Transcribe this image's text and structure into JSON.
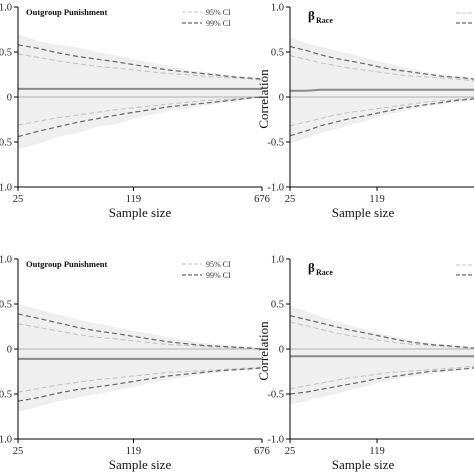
{
  "chart_data": [
    {
      "type": "area",
      "title": "Outgroup Punishment",
      "xlabel": "Sample size",
      "ylabel": "",
      "xticks": [
        "25",
        "119",
        "676"
      ],
      "yticks": [
        "1.0",
        "0.5",
        "0",
        "0.5",
        "1.0"
      ],
      "ylim": [
        -1,
        1
      ],
      "legend": [
        "95% CI",
        "99% CI"
      ],
      "legend_position": "top-right",
      "x": [
        25,
        33,
        43,
        56,
        73,
        95,
        119,
        150,
        190,
        240,
        305,
        385,
        480,
        580,
        676
      ],
      "series": [
        {
          "name": "",
          "values": [
            0.09,
            0.09,
            0.09,
            0.09,
            0.09,
            0.09,
            0.09,
            0.09,
            0.09,
            0.09,
            0.09,
            0.09,
            0.09,
            0.09,
            0.09
          ]
        },
        {
          "name": "95% CI",
          "upper": [
            0.48,
            0.44,
            0.4,
            0.37,
            0.34,
            0.32,
            0.3,
            0.28,
            0.26,
            0.25,
            0.23,
            0.22,
            0.21,
            0.2,
            0.19
          ],
          "lower": [
            -0.31,
            -0.27,
            -0.23,
            -0.2,
            -0.17,
            -0.14,
            -0.12,
            -0.1,
            -0.08,
            -0.06,
            -0.04,
            -0.03,
            -0.02,
            -0.01,
            0.0
          ]
        },
        {
          "name": "99% CI",
          "upper": [
            0.58,
            0.54,
            0.49,
            0.45,
            0.42,
            0.39,
            0.36,
            0.33,
            0.3,
            0.28,
            0.26,
            0.24,
            0.22,
            0.21,
            0.2
          ],
          "lower": [
            -0.44,
            -0.38,
            -0.33,
            -0.28,
            -0.24,
            -0.2,
            -0.17,
            -0.14,
            -0.11,
            -0.09,
            -0.07,
            -0.05,
            -0.03,
            -0.01,
            0.0
          ]
        },
        {
          "name": "band",
          "upper": [
            0.7,
            0.62,
            0.58,
            0.55,
            0.5,
            0.46,
            0.42,
            0.38,
            0.35,
            0.3,
            0.28,
            0.26,
            0.23,
            0.22,
            0.21
          ],
          "lower": [
            -0.58,
            -0.52,
            -0.44,
            -0.4,
            -0.33,
            -0.3,
            -0.24,
            -0.2,
            -0.16,
            -0.13,
            -0.1,
            -0.07,
            -0.05,
            -0.02,
            0.0
          ]
        }
      ]
    },
    {
      "type": "area",
      "title": "β",
      "title_sub": "Race",
      "xlabel": "Sample size",
      "ylabel": "Correlation",
      "xticks": [
        "25",
        "119"
      ],
      "yticks": [
        "1.0",
        "0.5",
        "0",
        "-0.5",
        "-1.0"
      ],
      "ylim": [
        -1,
        1
      ],
      "legend": [],
      "legend_position": "top-right",
      "x": [
        25,
        33,
        43,
        56,
        73,
        95,
        119,
        150,
        190,
        240,
        305,
        385,
        480,
        580,
        676
      ],
      "series": [
        {
          "name": "",
          "values": [
            0.07,
            0.07,
            0.08,
            0.08,
            0.08,
            0.08,
            0.08,
            0.08,
            0.08,
            0.08,
            0.08,
            0.08,
            0.08,
            0.08,
            0.08
          ]
        },
        {
          "name": "95% CI",
          "upper": [
            0.46,
            0.42,
            0.38,
            0.35,
            0.32,
            0.3,
            0.28,
            0.26,
            0.24,
            0.23,
            0.22,
            0.21,
            0.2,
            0.19,
            0.18
          ],
          "lower": [
            -0.32,
            -0.28,
            -0.24,
            -0.2,
            -0.17,
            -0.15,
            -0.13,
            -0.11,
            -0.09,
            -0.07,
            -0.05,
            -0.04,
            -0.03,
            -0.02,
            -0.01
          ]
        },
        {
          "name": "99% CI",
          "upper": [
            0.56,
            0.52,
            0.47,
            0.43,
            0.4,
            0.37,
            0.34,
            0.31,
            0.29,
            0.27,
            0.25,
            0.23,
            0.22,
            0.21,
            0.2
          ],
          "lower": [
            -0.43,
            -0.38,
            -0.32,
            -0.28,
            -0.24,
            -0.21,
            -0.18,
            -0.15,
            -0.12,
            -0.1,
            -0.08,
            -0.06,
            -0.04,
            -0.03,
            -0.02
          ]
        },
        {
          "name": "band",
          "upper": [
            0.66,
            0.6,
            0.56,
            0.52,
            0.48,
            0.44,
            0.4,
            0.37,
            0.33,
            0.3,
            0.27,
            0.25,
            0.23,
            0.22,
            0.21
          ],
          "lower": [
            -0.52,
            -0.46,
            -0.4,
            -0.36,
            -0.31,
            -0.27,
            -0.23,
            -0.19,
            -0.16,
            -0.13,
            -0.1,
            -0.08,
            -0.06,
            -0.04,
            -0.03
          ]
        }
      ]
    },
    {
      "type": "area",
      "title": "Outgroup Punishment",
      "xlabel": "Sample size",
      "ylabel": "",
      "xticks": [
        "25",
        "119",
        "676"
      ],
      "yticks": [
        "1.0",
        "0.5",
        "0",
        "0.5",
        "1.0"
      ],
      "ylim": [
        -1,
        1
      ],
      "legend": [
        "95% CI",
        "99% CI"
      ],
      "legend_position": "top-right",
      "x": [
        25,
        33,
        43,
        56,
        73,
        95,
        119,
        150,
        190,
        240,
        305,
        385,
        480,
        580,
        676
      ],
      "series": [
        {
          "name": "",
          "values": [
            -0.11,
            -0.11,
            -0.11,
            -0.11,
            -0.11,
            -0.11,
            -0.11,
            -0.11,
            -0.11,
            -0.11,
            -0.11,
            -0.11,
            -0.11,
            -0.11,
            -0.11
          ]
        },
        {
          "name": "95% CI",
          "upper": [
            0.28,
            0.24,
            0.2,
            0.16,
            0.13,
            0.11,
            0.09,
            0.07,
            0.05,
            0.04,
            0.03,
            0.02,
            0.01,
            0.0,
            0.0
          ],
          "lower": [
            -0.48,
            -0.44,
            -0.4,
            -0.37,
            -0.34,
            -0.32,
            -0.3,
            -0.28,
            -0.26,
            -0.25,
            -0.24,
            -0.23,
            -0.22,
            -0.21,
            -0.2
          ]
        },
        {
          "name": "99% CI",
          "upper": [
            0.39,
            0.34,
            0.29,
            0.24,
            0.2,
            0.17,
            0.14,
            0.11,
            0.08,
            0.06,
            0.04,
            0.03,
            0.02,
            0.01,
            0.0
          ],
          "lower": [
            -0.58,
            -0.54,
            -0.49,
            -0.45,
            -0.42,
            -0.39,
            -0.36,
            -0.33,
            -0.3,
            -0.28,
            -0.26,
            -0.24,
            -0.23,
            -0.22,
            -0.21
          ]
        },
        {
          "name": "band",
          "upper": [
            0.5,
            0.44,
            0.38,
            0.33,
            0.28,
            0.24,
            0.2,
            0.17,
            0.13,
            0.1,
            0.07,
            0.05,
            0.03,
            0.02,
            0.01
          ],
          "lower": [
            -0.7,
            -0.64,
            -0.58,
            -0.54,
            -0.5,
            -0.46,
            -0.42,
            -0.38,
            -0.34,
            -0.31,
            -0.28,
            -0.26,
            -0.24,
            -0.23,
            -0.22
          ]
        }
      ]
    },
    {
      "type": "area",
      "title": "β",
      "title_sub": "Race",
      "xlabel": "Sample size",
      "ylabel": "Correlation",
      "xticks": [
        "25",
        "119"
      ],
      "yticks": [
        "1.0",
        "0.5",
        "0",
        "-0.5",
        "-1.0"
      ],
      "ylim": [
        -1,
        1
      ],
      "legend": [],
      "legend_position": "top-right",
      "x": [
        25,
        33,
        43,
        56,
        73,
        95,
        119,
        150,
        190,
        240,
        305,
        385,
        480,
        580,
        676
      ],
      "series": [
        {
          "name": "",
          "values": [
            -0.08,
            -0.08,
            -0.08,
            -0.08,
            -0.08,
            -0.08,
            -0.08,
            -0.08,
            -0.08,
            -0.08,
            -0.08,
            -0.08,
            -0.08,
            -0.08,
            -0.08
          ]
        },
        {
          "name": "95% CI",
          "upper": [
            0.3,
            0.26,
            0.22,
            0.18,
            0.15,
            0.12,
            0.1,
            0.08,
            0.06,
            0.05,
            0.04,
            0.03,
            0.02,
            0.01,
            0.0
          ],
          "lower": [
            -0.44,
            -0.41,
            -0.38,
            -0.35,
            -0.32,
            -0.3,
            -0.28,
            -0.26,
            -0.25,
            -0.24,
            -0.23,
            -0.22,
            -0.21,
            -0.2,
            -0.19
          ]
        },
        {
          "name": "99% CI",
          "upper": [
            0.37,
            0.33,
            0.29,
            0.25,
            0.21,
            0.18,
            0.15,
            0.12,
            0.09,
            0.07,
            0.05,
            0.04,
            0.03,
            0.02,
            0.01
          ],
          "lower": [
            -0.5,
            -0.48,
            -0.45,
            -0.42,
            -0.39,
            -0.36,
            -0.33,
            -0.31,
            -0.29,
            -0.27,
            -0.25,
            -0.24,
            -0.23,
            -0.22,
            -0.21
          ]
        },
        {
          "name": "band",
          "upper": [
            0.48,
            0.42,
            0.36,
            0.31,
            0.26,
            0.22,
            0.18,
            0.15,
            0.12,
            0.09,
            0.07,
            0.05,
            0.03,
            0.02,
            0.01
          ],
          "lower": [
            -0.62,
            -0.58,
            -0.54,
            -0.5,
            -0.46,
            -0.42,
            -0.38,
            -0.35,
            -0.32,
            -0.3,
            -0.28,
            -0.26,
            -0.24,
            -0.23,
            -0.22
          ]
        }
      ]
    }
  ]
}
